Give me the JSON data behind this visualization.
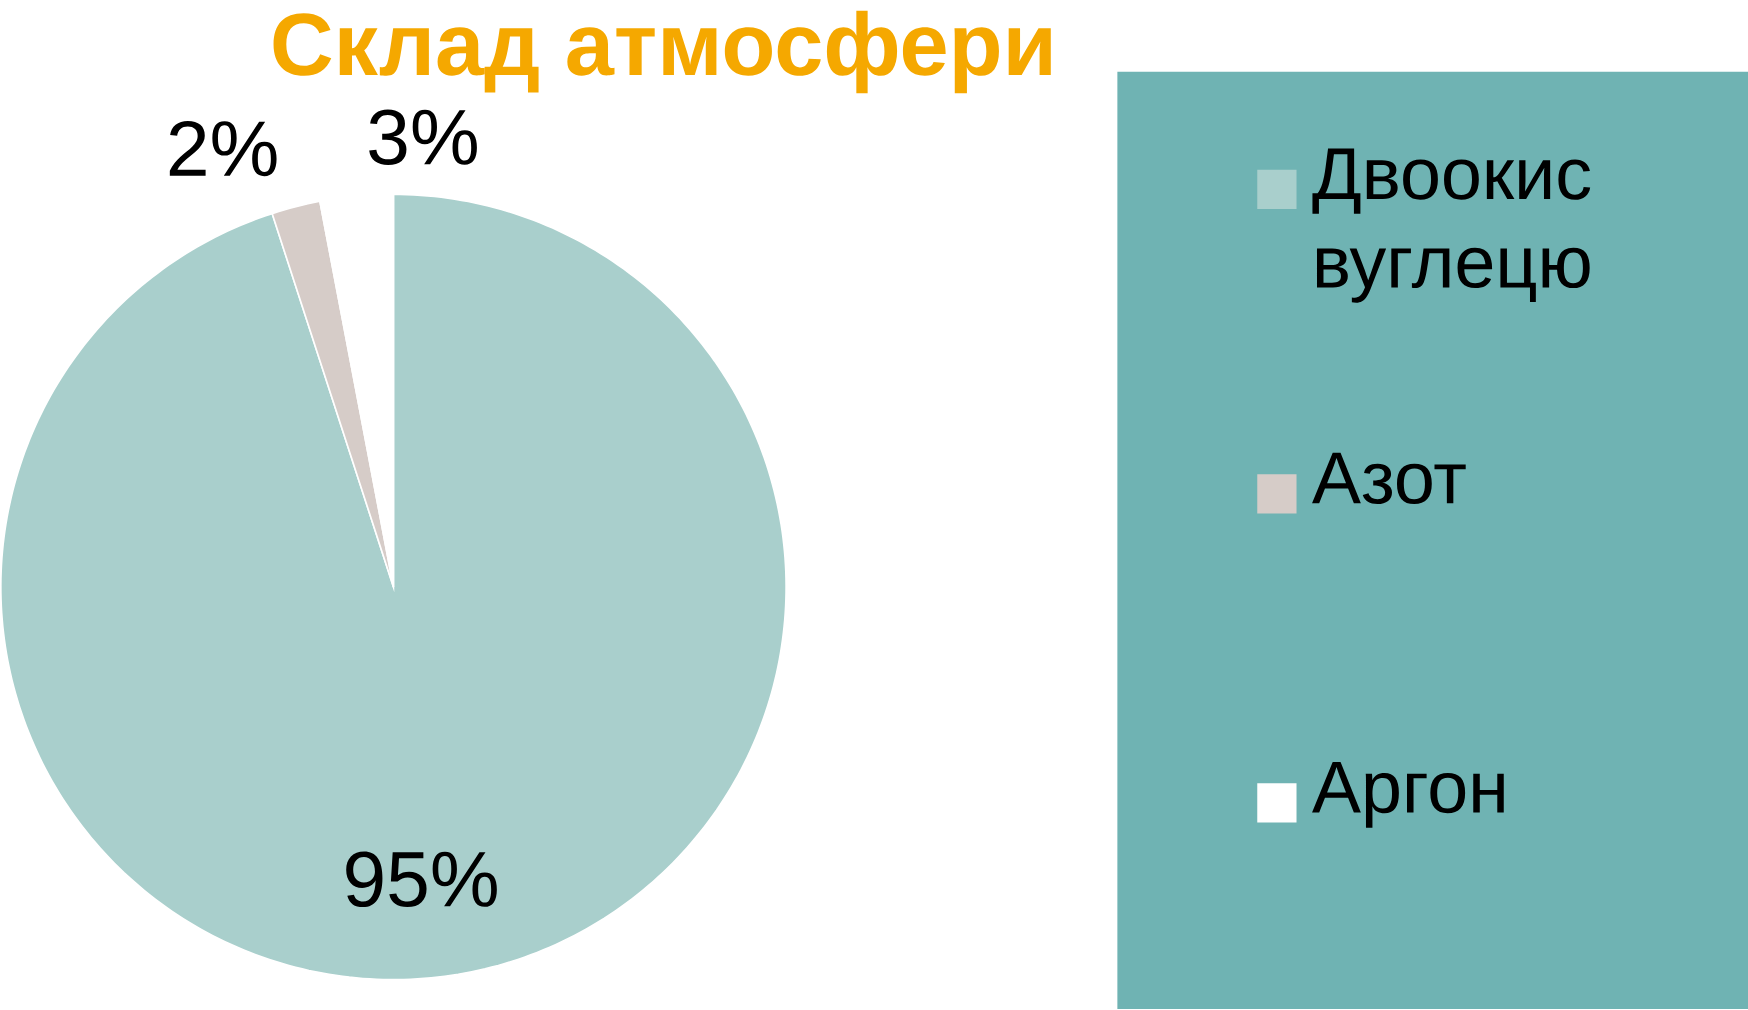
{
  "chart_data": {
    "type": "pie",
    "title": "Склад атмосфери",
    "categories": [
      "Двоокис вуглецю",
      "Азот",
      "Аргон"
    ],
    "values": [
      95,
      2,
      3
    ],
    "colors": [
      "#a9cfcc",
      "#d6ccc8",
      "#ffffff"
    ],
    "value_labels": [
      "95%",
      "2%",
      "3%"
    ],
    "legend": "right"
  }
}
